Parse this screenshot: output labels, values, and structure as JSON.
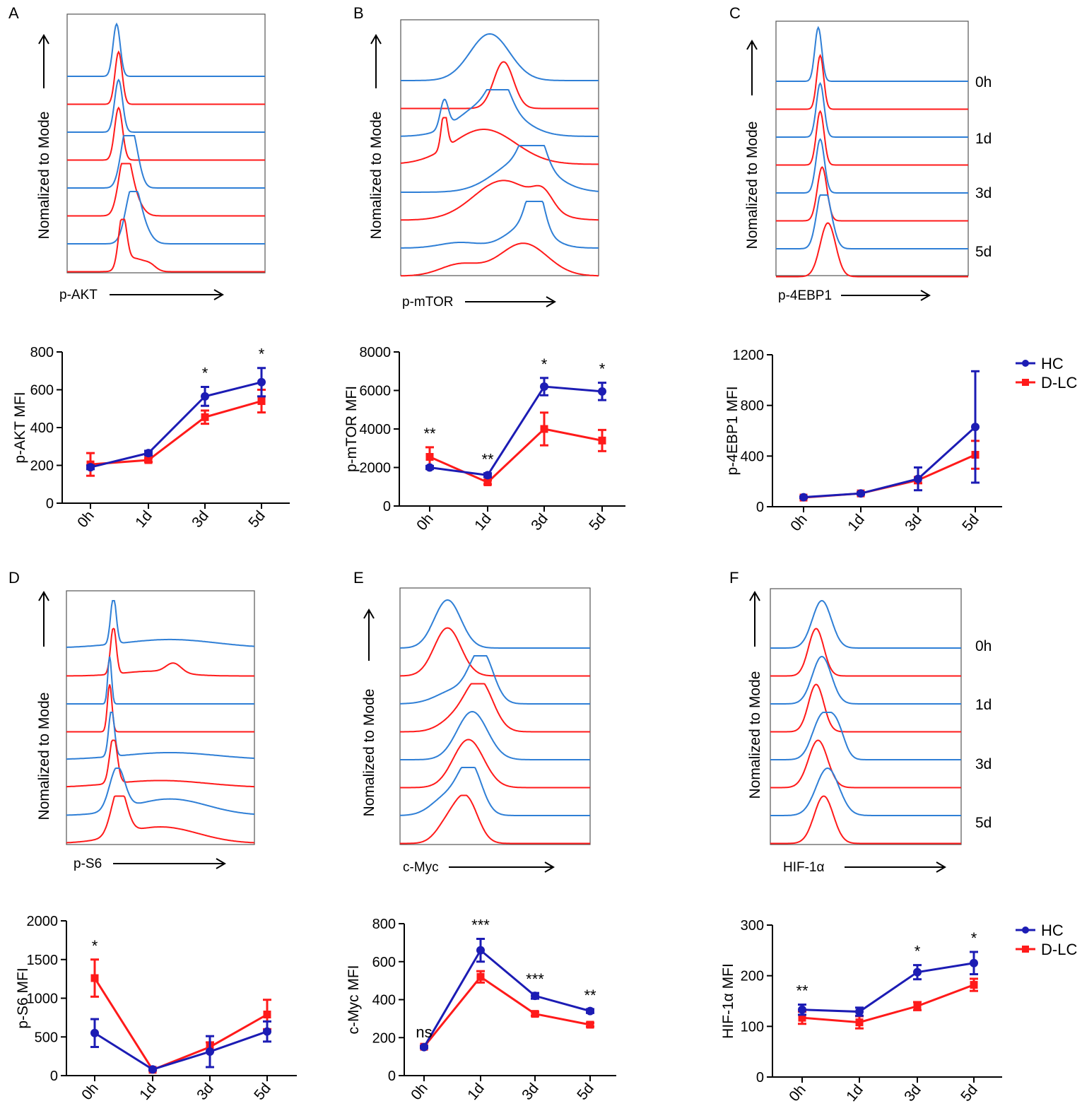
{
  "figure": {
    "colors": {
      "hc_line": "#1c1cb4",
      "dlc_line": "#ff1a1a",
      "hist_blue": "#2f7fd6",
      "hist_red": "#ff1a1a",
      "axis": "#000000",
      "frame": "#555555"
    },
    "legend": {
      "hc": "HC",
      "dlc": "D-LC"
    },
    "hist_ylabel": "Nomalized to Mode",
    "timepoint_labels": [
      "0h",
      "1d",
      "3d",
      "5d"
    ]
  },
  "histograms": [
    {
      "panel": "A",
      "xlabel": "p-AKT",
      "shows_time_labels": false
    },
    {
      "panel": "B",
      "xlabel": "p-mTOR",
      "shows_time_labels": false
    },
    {
      "panel": "C",
      "xlabel": "p-4EBP1",
      "shows_time_labels": true
    },
    {
      "panel": "D",
      "xlabel": "p-S6",
      "shows_time_labels": false
    },
    {
      "panel": "E",
      "xlabel": "c-Myc",
      "shows_time_labels": false
    },
    {
      "panel": "F",
      "xlabel": "HIF-1α",
      "shows_time_labels": true
    }
  ],
  "chart_data": [
    {
      "type": "line",
      "title": "",
      "xlabel": "",
      "ylabel": "p-AKT MFI",
      "categories": [
        "0h",
        "1d",
        "3d",
        "5d"
      ],
      "ylim": [
        0,
        800
      ],
      "yticks": [
        0,
        200,
        400,
        600,
        800
      ],
      "series": [
        {
          "name": "HC",
          "values": [
            190,
            265,
            565,
            640
          ],
          "errors": [
            10,
            12,
            50,
            75
          ]
        },
        {
          "name": "D-LC",
          "values": [
            205,
            228,
            455,
            540
          ],
          "errors": [
            60,
            10,
            35,
            60
          ]
        }
      ],
      "significance": [
        "",
        "",
        "*",
        "*"
      ],
      "legend": false
    },
    {
      "type": "line",
      "title": "",
      "xlabel": "",
      "ylabel": "p-mTOR MFI",
      "categories": [
        "0h",
        "1d",
        "3d",
        "5d"
      ],
      "ylim": [
        0,
        8000
      ],
      "yticks": [
        0,
        2000,
        4000,
        6000,
        8000
      ],
      "series": [
        {
          "name": "HC",
          "values": [
            2000,
            1600,
            6200,
            5950
          ],
          "errors": [
            80,
            100,
            450,
            450
          ]
        },
        {
          "name": "D-LC",
          "values": [
            2550,
            1230,
            4000,
            3400
          ],
          "errors": [
            500,
            100,
            850,
            550
          ]
        }
      ],
      "significance": [
        "**",
        "**",
        "*",
        "*"
      ],
      "legend": false
    },
    {
      "type": "line",
      "title": "",
      "xlabel": "",
      "ylabel": "p-4EBP1 MFI",
      "categories": [
        "0h",
        "1d",
        "3d",
        "5d"
      ],
      "ylim": [
        0,
        1200
      ],
      "yticks": [
        0,
        400,
        800,
        1200
      ],
      "series": [
        {
          "name": "HC",
          "values": [
            75,
            105,
            220,
            630
          ],
          "errors": [
            5,
            8,
            90,
            440
          ]
        },
        {
          "name": "D-LC",
          "values": [
            72,
            105,
            210,
            410
          ],
          "errors": [
            5,
            8,
            25,
            110
          ]
        }
      ],
      "significance": [
        "",
        "",
        "",
        ""
      ],
      "legend": true
    },
    {
      "type": "line",
      "title": "",
      "xlabel": "",
      "ylabel": "p-S6 MFI",
      "categories": [
        "0h",
        "1d",
        "3d",
        "5d"
      ],
      "ylim": [
        0,
        2000
      ],
      "yticks": [
        0,
        500,
        1000,
        1500,
        2000
      ],
      "series": [
        {
          "name": "HC",
          "values": [
            550,
            80,
            310,
            570
          ],
          "errors": [
            180,
            10,
            200,
            130
          ]
        },
        {
          "name": "D-LC",
          "values": [
            1260,
            75,
            370,
            790
          ],
          "errors": [
            240,
            10,
            60,
            190
          ]
        }
      ],
      "significance": [
        "*",
        "",
        "",
        ""
      ],
      "legend": false
    },
    {
      "type": "line",
      "title": "",
      "xlabel": "",
      "ylabel": "c-Myc  MFI",
      "categories": [
        "0h",
        "1d",
        "3d",
        "5d"
      ],
      "ylim": [
        0,
        800
      ],
      "yticks": [
        0,
        200,
        400,
        600,
        800
      ],
      "series": [
        {
          "name": "HC",
          "values": [
            150,
            660,
            420,
            340
          ],
          "errors": [
            5,
            60,
            15,
            10
          ]
        },
        {
          "name": "D-LC",
          "values": [
            152,
            520,
            325,
            268
          ],
          "errors": [
            5,
            30,
            10,
            10
          ]
        }
      ],
      "significance": [
        "ns",
        "***",
        "***",
        "**"
      ],
      "legend": false
    },
    {
      "type": "line",
      "title": "",
      "xlabel": "",
      "ylabel": "HIF-1α  MFI",
      "categories": [
        "0h",
        "1d",
        "3d",
        "5d"
      ],
      "ylim": [
        0,
        300
      ],
      "yticks": [
        0,
        100,
        200,
        300
      ],
      "series": [
        {
          "name": "HC",
          "values": [
            133,
            129,
            207,
            225
          ],
          "errors": [
            10,
            8,
            14,
            22
          ]
        },
        {
          "name": "D-LC",
          "values": [
            117,
            108,
            140,
            182
          ],
          "errors": [
            12,
            12,
            8,
            12
          ]
        }
      ],
      "significance": [
        "**",
        "",
        "*",
        "*"
      ],
      "legend": true
    }
  ]
}
